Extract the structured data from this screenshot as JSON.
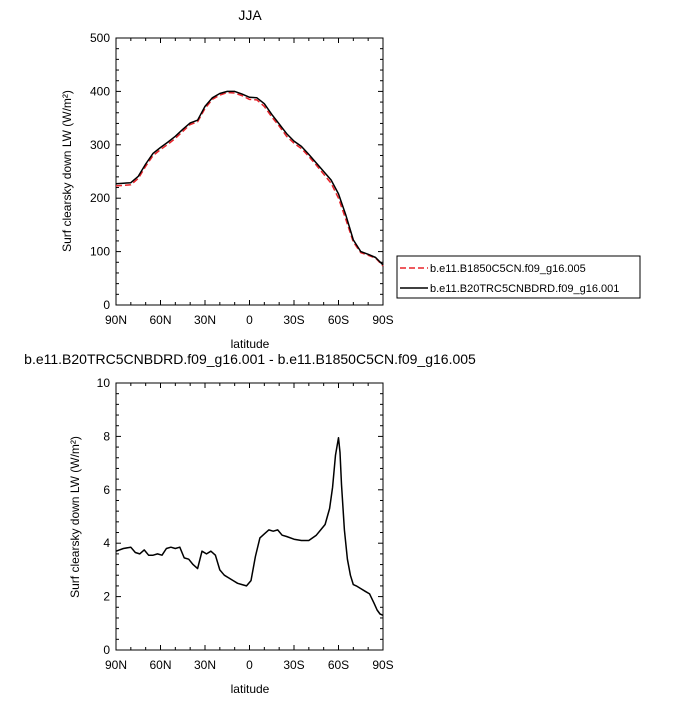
{
  "chart_data": [
    {
      "type": "line",
      "title": "JJA",
      "xlabel": "latitude",
      "ylabel": "Surf clearsky down LW (W/m²)",
      "xlim": [
        90,
        -90
      ],
      "ylim": [
        0,
        500
      ],
      "x_ticks": [
        90,
        60,
        30,
        0,
        -30,
        -60,
        -90
      ],
      "x_tick_labels": [
        "90N",
        "60N",
        "30N",
        "0",
        "30S",
        "60S",
        "90S"
      ],
      "y_ticks": [
        0,
        100,
        200,
        300,
        400,
        500
      ],
      "y_tick_labels": [
        "0",
        "100",
        "200",
        "300",
        "400",
        "500"
      ],
      "legend_position": "right",
      "colors": {
        "b.e11.B1850C5CN.f09_g16.005": "#e8232a",
        "b.e11.B20TRC5CNBDRD.f09_g16.001": "#000000"
      },
      "series": [
        {
          "name": "b.e11.B1850C5CN.f09_g16.005",
          "color": "#e8232a",
          "dash": "dashed",
          "x": [
            90,
            85,
            80,
            75,
            70,
            65,
            60,
            55,
            50,
            45,
            40,
            35,
            30,
            25,
            20,
            15,
            10,
            5,
            0,
            -5,
            -10,
            -15,
            -20,
            -25,
            -30,
            -35,
            -40,
            -45,
            -50,
            -55,
            -60,
            -65,
            -70,
            -75,
            -80,
            -85,
            -90
          ],
          "values": [
            223,
            224,
            225,
            237,
            260,
            280,
            291,
            301,
            312,
            325,
            338,
            343,
            368,
            385,
            393,
            398,
            397,
            392,
            385,
            384,
            372,
            352,
            335,
            316,
            303,
            293,
            278,
            262,
            245,
            228,
            200,
            160,
            118,
            98,
            93,
            88,
            73
          ]
        },
        {
          "name": "b.e11.B20TRC5CNBDRD.f09_g16.001",
          "color": "#000000",
          "dash": "solid",
          "x": [
            90,
            85,
            80,
            75,
            70,
            65,
            60,
            55,
            50,
            45,
            40,
            35,
            30,
            25,
            20,
            15,
            10,
            5,
            0,
            -5,
            -10,
            -15,
            -20,
            -25,
            -30,
            -35,
            -40,
            -45,
            -50,
            -55,
            -60,
            -65,
            -70,
            -75,
            -80,
            -85,
            -90
          ],
          "values": [
            227,
            228,
            229,
            241,
            264,
            284,
            295,
            305,
            316,
            329,
            341,
            346,
            372,
            388,
            396,
            400,
            400,
            395,
            389,
            388,
            377,
            357,
            339,
            321,
            307,
            297,
            282,
            266,
            250,
            234,
            208,
            168,
            122,
            100,
            95,
            89,
            75
          ]
        }
      ]
    },
    {
      "type": "line",
      "title": "b.e11.B20TRC5CNBDRD.f09_g16.001 - b.e11.B1850C5CN.f09_g16.005",
      "xlabel": "latitude",
      "ylabel": "Surf clearsky down LW (W/m²)",
      "xlim": [
        90,
        -90
      ],
      "ylim": [
        0,
        10
      ],
      "x_ticks": [
        90,
        60,
        30,
        0,
        -30,
        -60,
        -90
      ],
      "x_tick_labels": [
        "90N",
        "60N",
        "30N",
        "0",
        "30S",
        "60S",
        "90S"
      ],
      "y_ticks": [
        0,
        2,
        4,
        6,
        8,
        10
      ],
      "y_tick_labels": [
        "0",
        "2",
        "4",
        "6",
        "8",
        "10"
      ],
      "series": [
        {
          "color": "#000000",
          "dash": "solid",
          "x": [
            90,
            85,
            80,
            77,
            74,
            71,
            68,
            65,
            62,
            59,
            56,
            53,
            50,
            47,
            44,
            41,
            38,
            35,
            32,
            29,
            26,
            23,
            20,
            17,
            14,
            11,
            8,
            5,
            2,
            -1,
            -4,
            -7,
            -10,
            -13,
            -16,
            -19,
            -22,
            -25,
            -30,
            -35,
            -40,
            -45,
            -48,
            -51,
            -54,
            -56,
            -58,
            -60,
            -61,
            -62,
            -64,
            -66,
            -68,
            -70,
            -72,
            -75,
            -78,
            -81,
            -84,
            -86,
            -88,
            -90
          ],
          "values": [
            3.7,
            3.8,
            3.85,
            3.65,
            3.6,
            3.75,
            3.55,
            3.55,
            3.6,
            3.55,
            3.8,
            3.85,
            3.8,
            3.85,
            3.45,
            3.4,
            3.2,
            3.05,
            3.7,
            3.6,
            3.7,
            3.55,
            3.0,
            2.8,
            2.7,
            2.6,
            2.5,
            2.45,
            2.4,
            2.6,
            3.5,
            4.2,
            4.35,
            4.5,
            4.45,
            4.5,
            4.3,
            4.25,
            4.15,
            4.1,
            4.1,
            4.3,
            4.5,
            4.7,
            5.3,
            6.1,
            7.3,
            7.95,
            7.4,
            6.2,
            4.5,
            3.4,
            2.8,
            2.45,
            2.4,
            2.3,
            2.2,
            2.1,
            1.75,
            1.5,
            1.35,
            1.3
          ]
        }
      ]
    }
  ]
}
